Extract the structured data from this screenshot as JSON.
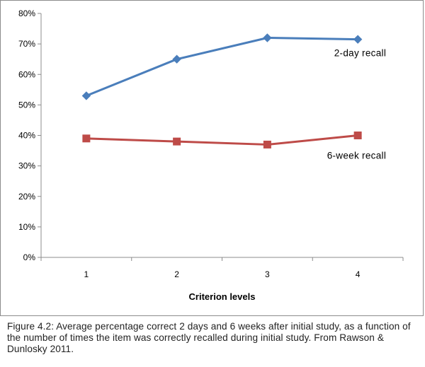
{
  "chart_data": {
    "type": "line",
    "categories": [
      "1",
      "2",
      "3",
      "4"
    ],
    "series": [
      {
        "name": "2-day recall",
        "values": [
          53,
          65,
          72,
          71.5
        ],
        "color": "#4a7ebb",
        "marker": "diamond"
      },
      {
        "name": "6-week recall",
        "values": [
          39,
          38,
          37,
          40
        ],
        "color": "#be4b48",
        "marker": "square"
      }
    ],
    "title": "",
    "xlabel": "Criterion levels",
    "ylabel": "",
    "ylim": [
      0,
      80
    ],
    "yticks": [
      "0%",
      "10%",
      "20%",
      "30%",
      "40%",
      "50%",
      "60%",
      "70%",
      "80%"
    ],
    "grid": false,
    "legend": "inline labels"
  },
  "caption": "Figure 4.2: Average percentage correct 2 days and 6 weeks after initial study, as a function of the number of times the item was correctly recalled during initial study. From Rawson & Dunlosky 2011."
}
